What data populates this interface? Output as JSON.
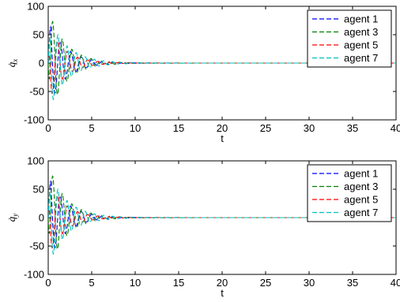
{
  "chart_data": [
    {
      "type": "line",
      "xlabel": "t",
      "ylabel_main": "q̇",
      "ylabel_sub": "x",
      "xlim": [
        0,
        40
      ],
      "ylim": [
        -100,
        100
      ],
      "xticks": [
        0,
        5,
        10,
        15,
        20,
        25,
        30,
        35,
        40
      ],
      "yticks": [
        100,
        50,
        0,
        -50,
        -100
      ],
      "legend_position": "top-right",
      "grid": false,
      "series": [
        {
          "name": "agent 1",
          "color": "#0000ff",
          "A": 80,
          "omega": 5.2,
          "tau": 1.9,
          "phase": 0.6
        },
        {
          "name": "agent 3",
          "color": "#008000",
          "A": 95,
          "omega": 5.7,
          "tau": 2.0,
          "phase": -1.4
        },
        {
          "name": "agent 5",
          "color": "#ff0000",
          "A": 70,
          "omega": 5.4,
          "tau": 1.8,
          "phase": 2.1
        },
        {
          "name": "agent 7",
          "color": "#00bfbf",
          "A": 85,
          "omega": 6.0,
          "tau": 2.1,
          "phase": 1.1
        }
      ]
    },
    {
      "type": "line",
      "xlabel": "t",
      "ylabel_main": "q̇",
      "ylabel_sub": "y",
      "xlim": [
        0,
        40
      ],
      "ylim": [
        -100,
        100
      ],
      "xticks": [
        0,
        5,
        10,
        15,
        20,
        25,
        30,
        35,
        40
      ],
      "yticks": [
        100,
        50,
        0,
        -50,
        -100
      ],
      "legend_position": "top-right",
      "grid": false,
      "series": [
        {
          "name": "agent 1",
          "color": "#0000ff",
          "A": 80,
          "omega": 5.2,
          "tau": 1.9,
          "phase": 0.6
        },
        {
          "name": "agent 3",
          "color": "#008000",
          "A": 95,
          "omega": 5.7,
          "tau": 2.0,
          "phase": -1.4
        },
        {
          "name": "agent 5",
          "color": "#ff0000",
          "A": 70,
          "omega": 5.4,
          "tau": 1.8,
          "phase": 2.1
        },
        {
          "name": "agent 7",
          "color": "#00bfbf",
          "A": 85,
          "omega": 6.0,
          "tau": 2.1,
          "phase": 1.1
        }
      ]
    }
  ]
}
